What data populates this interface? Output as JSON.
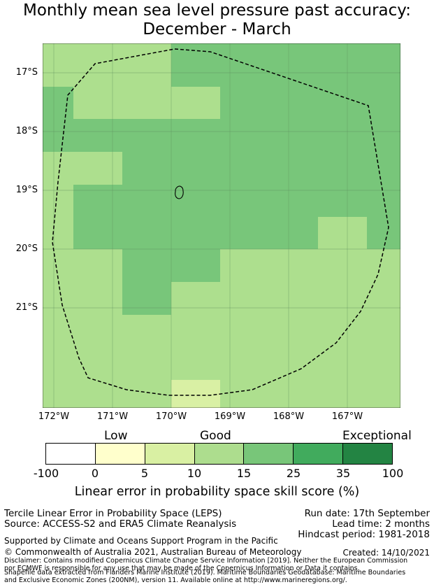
{
  "title": {
    "line1": "Monthly mean sea level pressure past accuracy:",
    "line2": "December - March"
  },
  "map": {
    "lat_labels": [
      "17°S",
      "18°S",
      "19°S",
      "20°S",
      "21°S"
    ],
    "lon_labels": [
      "172°W",
      "171°W",
      "170°W",
      "169°W",
      "168°W",
      "167°W"
    ],
    "cell_colors": {
      "c10_15": "#addf8e",
      "c15_25": "#78c67a",
      "c5_10": "#d9f0a4"
    }
  },
  "colorbar": {
    "categories": {
      "low": "Low",
      "good": "Good",
      "exceptional": "Exceptional"
    },
    "ticks": [
      "-100",
      "0",
      "5",
      "10",
      "15",
      "25",
      "35",
      "100"
    ],
    "colors": [
      "#ffffff",
      "#ffffcc",
      "#d9f0a3",
      "#addd8e",
      "#78c679",
      "#41ab5d",
      "#238443"
    ],
    "label": "Linear error in probability space skill score (%)"
  },
  "footer": {
    "method": "Tercile Linear Error in Probability Space (LEPS)",
    "source": "Source: ACCESS-S2 and ERA5 Climate Reanalysis",
    "run_date": "Run date: 17th September",
    "lead_time": "Lead time: 2 months",
    "hindcast": "Hindcast period: 1981-2018",
    "supported": "Supported by Climate and Oceans Support Program in the Pacific",
    "copyright": "© Commonwealth of Australia 2021, Australian Bureau of Meteorology",
    "created": "Created: 14/10/2021",
    "disclaimer": "Disclaimer: Contains modified Copernicus Climate Change Service Information [2019]. Neither the European Commission nor ECMWF is responsible for any use that may be made of the Copernicus Information or Data it contains.",
    "shapefile": "Shapefile data extracted from Flanders Marine Institute (2019). Maritime Boundaries Geodatabase: Maritime Boundaries and Exclusive Economic Zones (200NM), version 11. Available online at http://www.marineregions.org/."
  }
}
